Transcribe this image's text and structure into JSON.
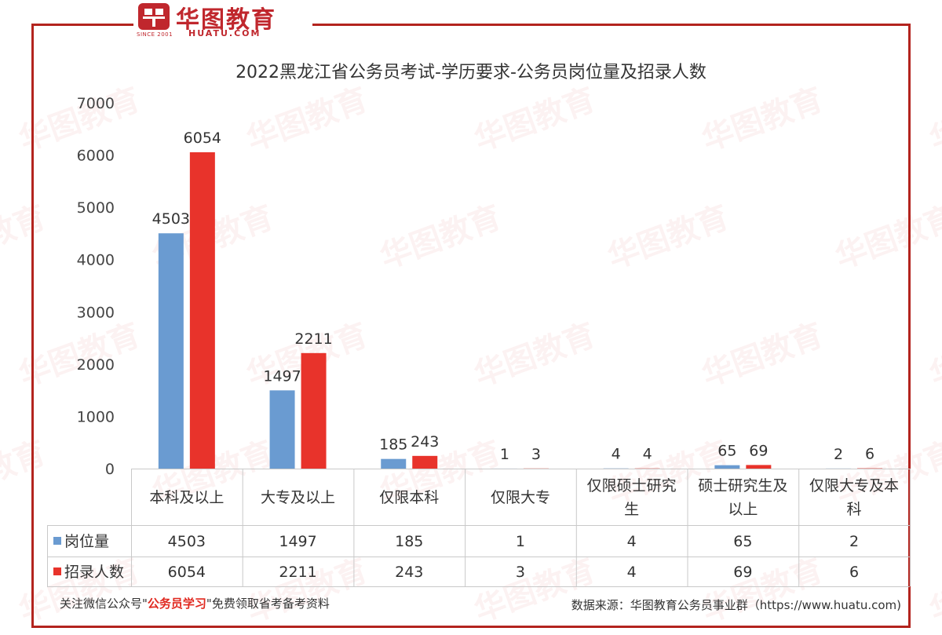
{
  "logo": {
    "name": "华图教育",
    "url": "HUATU.COM",
    "since": "SINCE 2001"
  },
  "watermark_text": "华图教育",
  "footer": {
    "left_prefix": "关注微信公众号\"",
    "left_highlight": "公务员学习",
    "left_suffix": "\"免费领取省考备考资料",
    "right": "数据来源：华图教育公务员事业群（https://www.huatu.com)"
  },
  "colors": {
    "series1": "#6a9bd1",
    "series2": "#e8332b",
    "frame": "#b3241e",
    "highlight": "#e0281f"
  },
  "chart_data": {
    "type": "bar",
    "title": "2022黑龙江省公务员考试-学历要求-公务员岗位量及招录人数",
    "categories": [
      [
        "本科及以上"
      ],
      [
        "大专及以上"
      ],
      [
        "仅限本科"
      ],
      [
        "仅限大专"
      ],
      [
        "仅限硕士研究",
        "生"
      ],
      [
        "硕士研究生及",
        "以上"
      ],
      [
        "仅限大专及本",
        "科"
      ]
    ],
    "series": [
      {
        "name": "岗位量",
        "values": [
          4503,
          1497,
          185,
          1,
          4,
          65,
          2
        ]
      },
      {
        "name": "招录人数",
        "values": [
          6054,
          2211,
          243,
          3,
          4,
          69,
          6
        ]
      }
    ],
    "yticks": [
      "0",
      "1000",
      "2000",
      "3000",
      "4000",
      "5000",
      "6000",
      "7000"
    ],
    "ylim": [
      0,
      7000
    ],
    "grid": false,
    "legend": "data-table"
  }
}
